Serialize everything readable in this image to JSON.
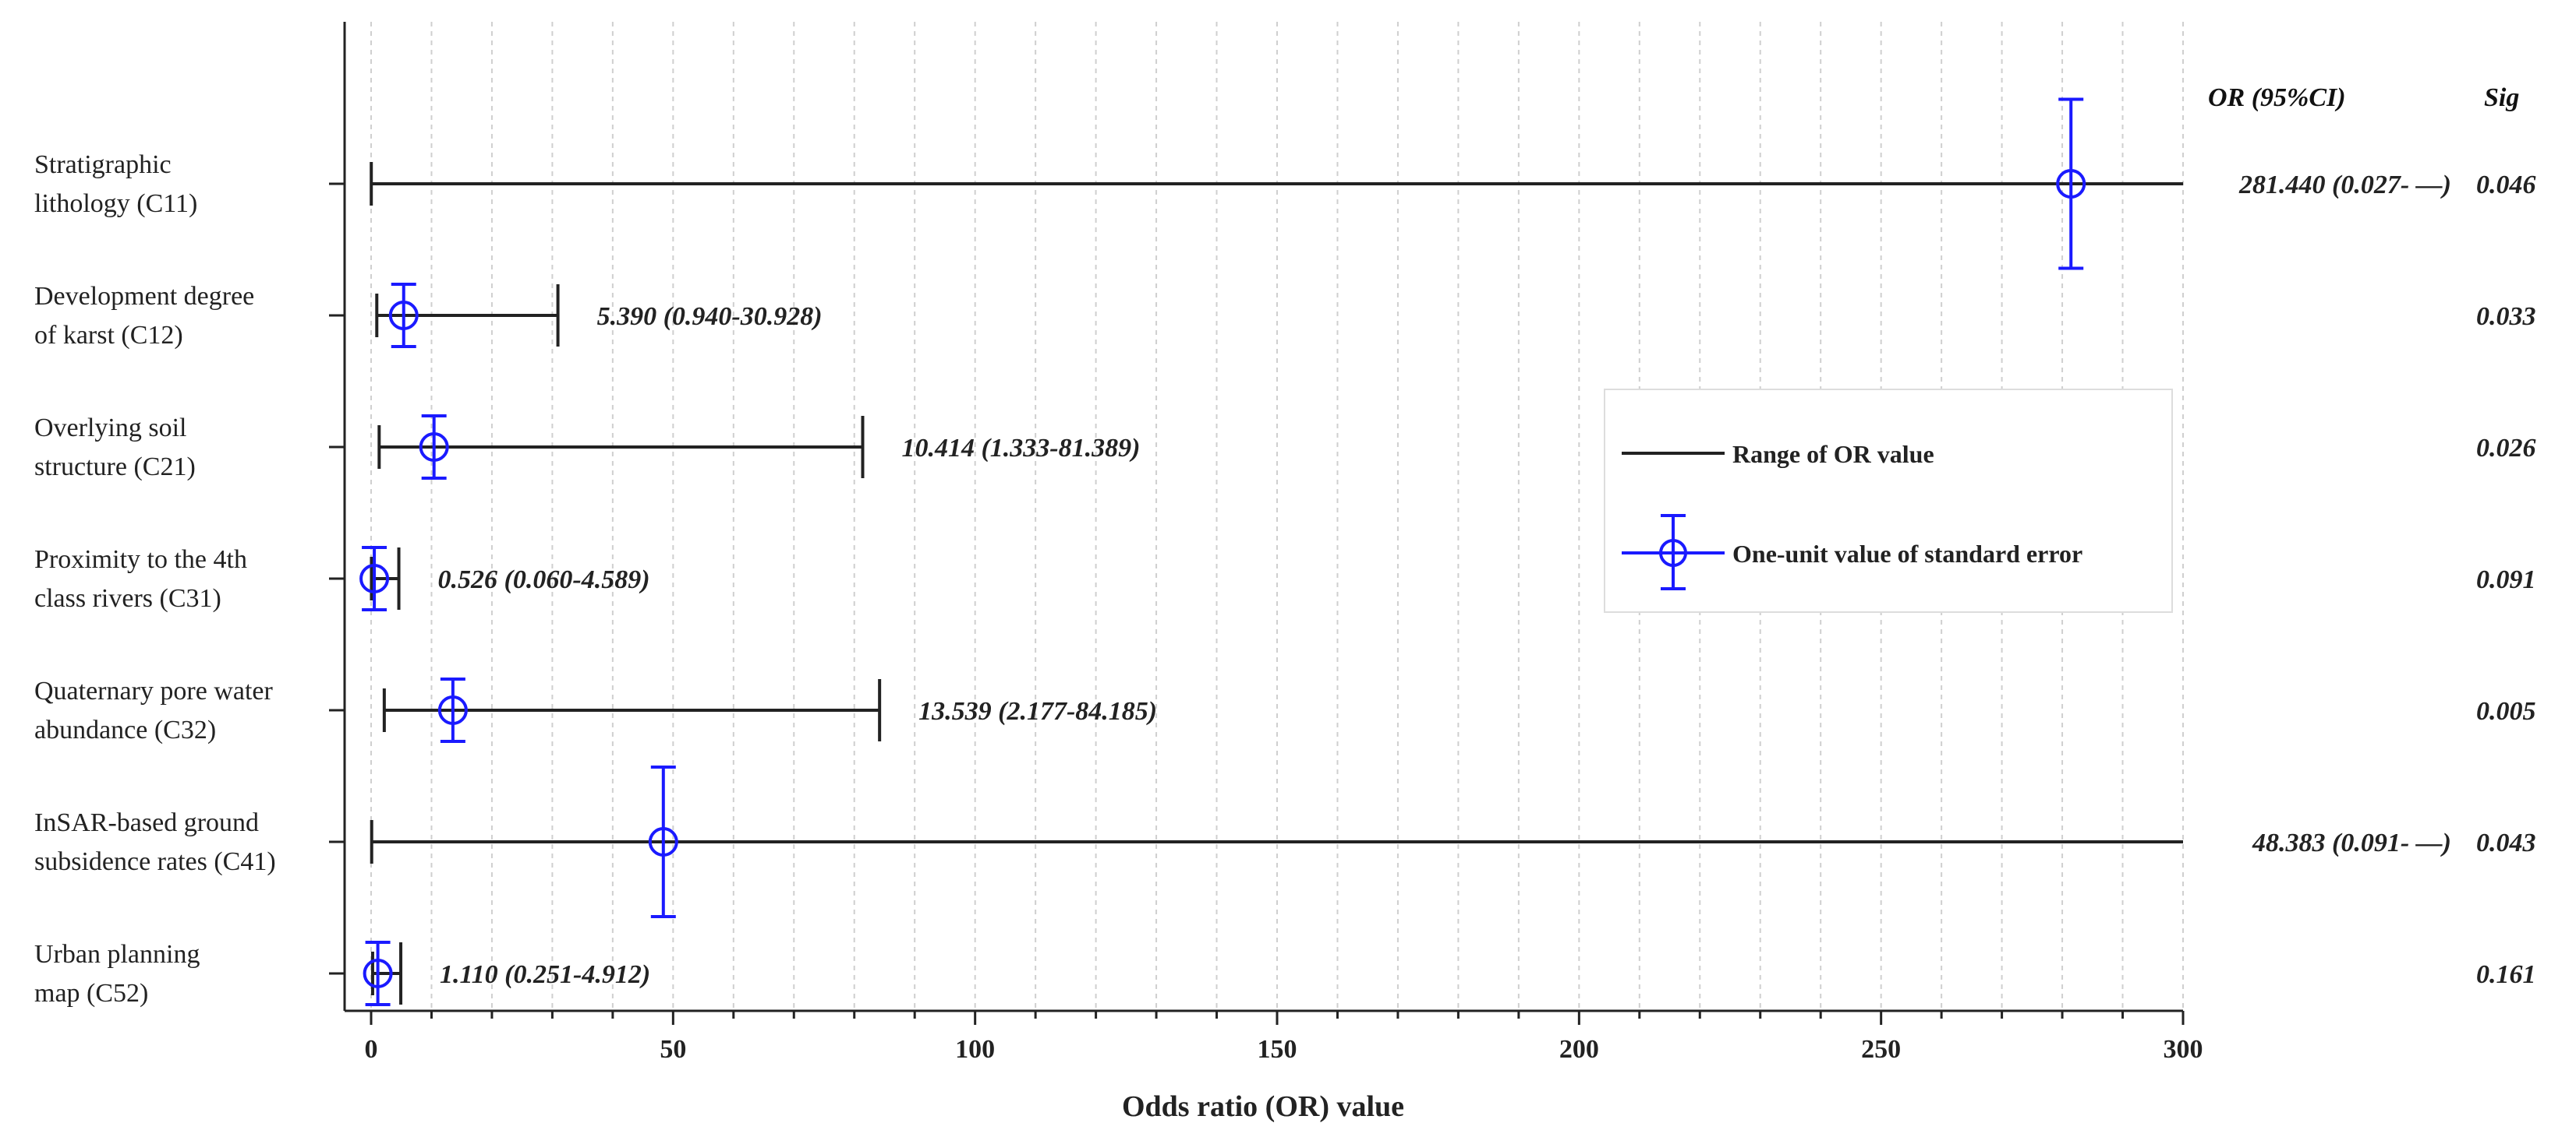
{
  "chart_data": {
    "type": "forest",
    "xlabel": "Odds ratio (OR) value",
    "xlim": [
      0,
      300
    ],
    "xticks": [
      "0",
      "50",
      "100",
      "150",
      "200",
      "250",
      "300"
    ],
    "grid": true,
    "column_headers": {
      "or": "OR (95%CI)",
      "sig": "Sig"
    },
    "legend": {
      "position": "right-middle",
      "range_label": "Range of OR value",
      "se_label": "One-unit value of standard error",
      "range_color": "#222222",
      "se_color": "#1a1aff"
    },
    "rows": [
      {
        "label_lines": [
          "Stratigraphic",
          "lithology (C11)"
        ],
        "or": 281.44,
        "ci_low": 0.027,
        "ci_high": null,
        "se_low": 230,
        "se_high": 333,
        "or_text": "281.440 (0.027- —)",
        "sig": "0.046"
      },
      {
        "label_lines": [
          "Development degree",
          "of karst (C12)"
        ],
        "or": 5.39,
        "ci_low": 0.94,
        "ci_high": 30.928,
        "se_low": 2.5,
        "se_high": 8.2,
        "or_text": "5.390 (0.940-30.928)",
        "sig": "0.033"
      },
      {
        "label_lines": [
          "Overlying soil",
          "structure (C21)"
        ],
        "or": 10.414,
        "ci_low": 1.333,
        "ci_high": 81.389,
        "se_low": 5.5,
        "se_high": 15.3,
        "or_text": "10.414 (1.333-81.389)",
        "sig": "0.026"
      },
      {
        "label_lines": [
          "Proximity to the 4th",
          "class rivers (C31)"
        ],
        "or": 0.526,
        "ci_low": 0.06,
        "ci_high": 4.589,
        "se_low": -0.5,
        "se_high": 1.6,
        "or_text": "0.526 (0.060-4.589)",
        "sig": "0.091"
      },
      {
        "label_lines": [
          "Quaternary pore water",
          "abundance (C32)"
        ],
        "or": 13.539,
        "ci_low": 2.177,
        "ci_high": 84.185,
        "se_low": 9.5,
        "se_high": 17.5,
        "or_text": "13.539 (2.177-84.185)",
        "sig": "0.005"
      },
      {
        "label_lines": [
          "InSAR-based ground",
          "subsidence rates (C41)"
        ],
        "or": 48.383,
        "ci_low": 0.091,
        "ci_high": null,
        "se_low": 17,
        "se_high": 79,
        "or_text": "48.383 (0.091- —)",
        "sig": "0.043"
      },
      {
        "label_lines": [
          "Urban planning",
          "map (C52)"
        ],
        "or": 1.11,
        "ci_low": 0.251,
        "ci_high": 4.912,
        "se_low": -0.5,
        "se_high": 2.8,
        "or_text": "1.110 (0.251-4.912)",
        "sig": "0.161"
      }
    ]
  }
}
